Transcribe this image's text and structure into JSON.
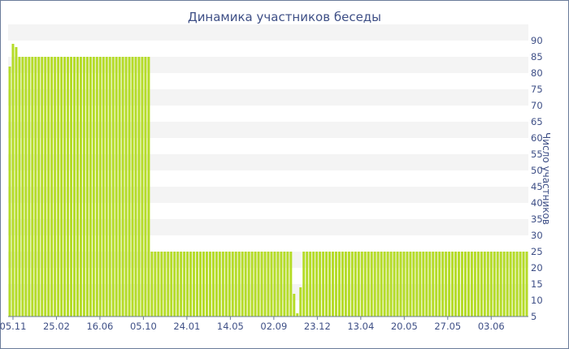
{
  "chart_data": {
    "type": "bar",
    "title": "Динамика участников беседы",
    "xlabel": "",
    "ylabel": "Число участников",
    "ylim": [
      5,
      90
    ],
    "yticks": [
      5,
      10,
      15,
      20,
      25,
      30,
      35,
      40,
      45,
      50,
      55,
      60,
      65,
      70,
      75,
      80,
      85,
      90
    ],
    "xtick_labels": [
      "05.11",
      "25.02",
      "16.06",
      "05.10",
      "24.01",
      "14.05",
      "02.09",
      "23.12",
      "13.04",
      "20.05",
      "27.05",
      "03.06"
    ],
    "grid": "horizontal bands",
    "color": "#b5dc28",
    "values": [
      82,
      89,
      88,
      85,
      85,
      85,
      85,
      85,
      85,
      85,
      85,
      85,
      85,
      85,
      85,
      85,
      85,
      85,
      85,
      85,
      85,
      85,
      85,
      85,
      85,
      85,
      85,
      85,
      85,
      85,
      85,
      85,
      85,
      85,
      85,
      85,
      85,
      85,
      85,
      85,
      85,
      85,
      85,
      85,
      25,
      25,
      25,
      25,
      25,
      25,
      25,
      25,
      25,
      25,
      25,
      25,
      25,
      25,
      25,
      25,
      25,
      25,
      25,
      25,
      25,
      25,
      25,
      25,
      25,
      25,
      25,
      25,
      25,
      25,
      25,
      25,
      25,
      25,
      25,
      25,
      25,
      25,
      25,
      25,
      25,
      25,
      25,
      25,
      12,
      6,
      14,
      25,
      25,
      25,
      25,
      25,
      25,
      25,
      25,
      25,
      25,
      25,
      25,
      25,
      25,
      25,
      25,
      25,
      25,
      25,
      25,
      25,
      25,
      25,
      25,
      25,
      25,
      25,
      25,
      25,
      25,
      25,
      25,
      25,
      25,
      25,
      25,
      25,
      25,
      25,
      25,
      25,
      25,
      25,
      25,
      25,
      25,
      25,
      25,
      25,
      25,
      25,
      25,
      25,
      25,
      25,
      25,
      25,
      25,
      25,
      25,
      25,
      25,
      25,
      25,
      25,
      25,
      25,
      25,
      25,
      25
    ]
  }
}
